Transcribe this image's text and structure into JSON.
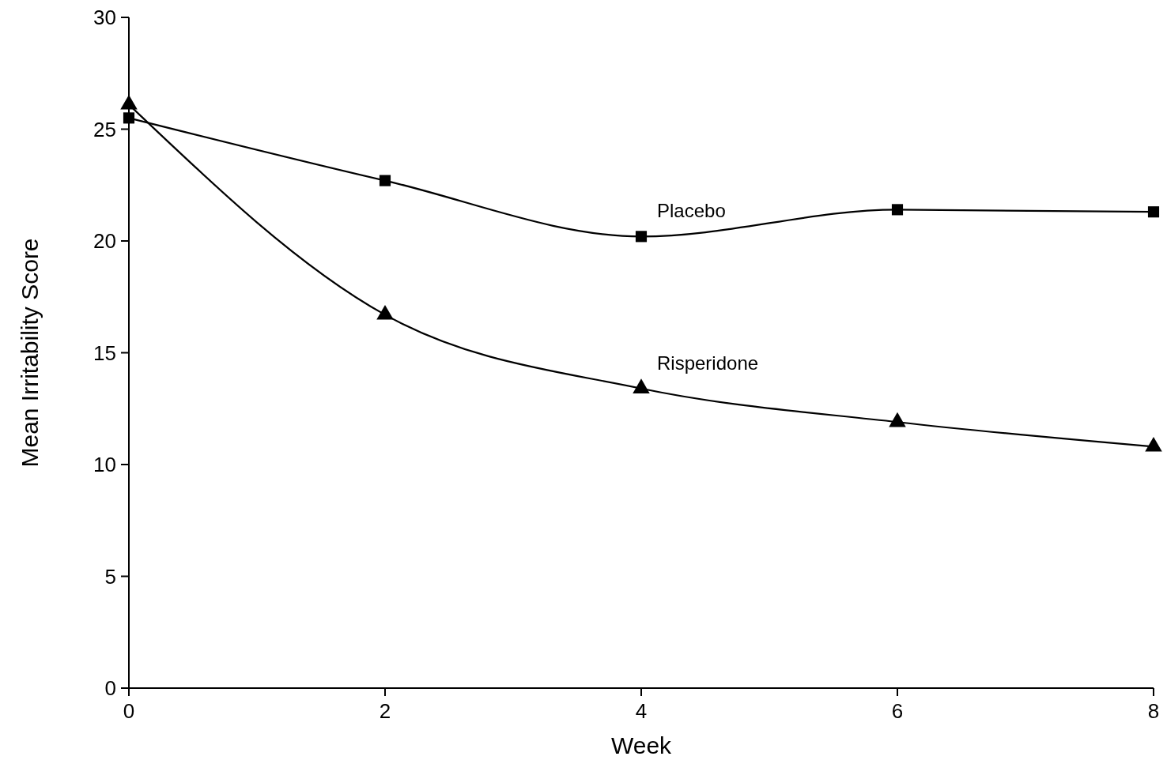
{
  "chart_data": {
    "type": "line",
    "xlabel": "Week",
    "ylabel": "Mean Irritability Score",
    "x": [
      0,
      2,
      4,
      6,
      8
    ],
    "series": [
      {
        "name": "Placebo",
        "color": "#000000",
        "marker": "square",
        "values": [
          25.5,
          22.7,
          20.2,
          21.4,
          21.3
        ]
      },
      {
        "name": "Risperidone",
        "color": "#000000",
        "marker": "triangle",
        "values": [
          26.1,
          16.7,
          13.4,
          11.9,
          10.8
        ]
      }
    ],
    "xlim": [
      0,
      8
    ],
    "xticks": [
      0,
      2,
      4,
      6,
      8
    ],
    "ylim": [
      0,
      30
    ],
    "yticks": [
      0,
      5,
      10,
      15,
      20,
      25,
      30
    ],
    "grid": false,
    "line_style": "solid"
  }
}
